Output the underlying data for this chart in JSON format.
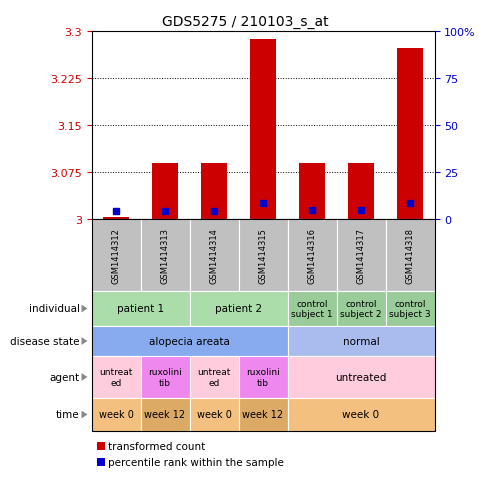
{
  "title": "GDS5275 / 210103_s_at",
  "samples": [
    "GSM1414312",
    "GSM1414313",
    "GSM1414314",
    "GSM1414315",
    "GSM1414316",
    "GSM1414317",
    "GSM1414318"
  ],
  "red_values": [
    3.003,
    3.09,
    3.09,
    3.287,
    3.09,
    3.09,
    3.273
  ],
  "blue_values": [
    3.012,
    3.012,
    3.012,
    3.025,
    3.015,
    3.015,
    3.025
  ],
  "ylim_left": [
    3.0,
    3.3
  ],
  "ylim_right": [
    0,
    100
  ],
  "yticks_left": [
    3.0,
    3.075,
    3.15,
    3.225,
    3.3
  ],
  "yticks_right": [
    0,
    25,
    50,
    75,
    100
  ],
  "ytick_labels_left": [
    "3",
    "3.075",
    "3.15",
    "3.225",
    "3.3"
  ],
  "ytick_labels_right": [
    "0",
    "25",
    "50",
    "75",
    "100%"
  ],
  "red_color": "#cc0000",
  "blue_color": "#0000cc",
  "table_header_bg": "#c0c0c0",
  "individual_row": {
    "label": "individual",
    "cells": [
      {
        "text": "patient 1",
        "span": 2,
        "bg": "#aaddaa"
      },
      {
        "text": "patient 2",
        "span": 2,
        "bg": "#aaddaa"
      },
      {
        "text": "control\nsubject 1",
        "span": 1,
        "bg": "#99cc99"
      },
      {
        "text": "control\nsubject 2",
        "span": 1,
        "bg": "#99cc99"
      },
      {
        "text": "control\nsubject 3",
        "span": 1,
        "bg": "#99cc99"
      }
    ]
  },
  "disease_row": {
    "label": "disease state",
    "cells": [
      {
        "text": "alopecia areata",
        "span": 4,
        "bg": "#88aaee"
      },
      {
        "text": "normal",
        "span": 3,
        "bg": "#aabbee"
      }
    ]
  },
  "agent_row": {
    "label": "agent",
    "cells": [
      {
        "text": "untreat\ned",
        "span": 1,
        "bg": "#ffccdd"
      },
      {
        "text": "ruxolini\ntib",
        "span": 1,
        "bg": "#ee88ee"
      },
      {
        "text": "untreat\ned",
        "span": 1,
        "bg": "#ffccdd"
      },
      {
        "text": "ruxolini\ntib",
        "span": 1,
        "bg": "#ee88ee"
      },
      {
        "text": "untreated",
        "span": 3,
        "bg": "#ffccdd"
      }
    ]
  },
  "time_row": {
    "label": "time",
    "cells": [
      {
        "text": "week 0",
        "span": 1,
        "bg": "#f4c080"
      },
      {
        "text": "week 12",
        "span": 1,
        "bg": "#ddaa66"
      },
      {
        "text": "week 0",
        "span": 1,
        "bg": "#f4c080"
      },
      {
        "text": "week 12",
        "span": 1,
        "bg": "#ddaa66"
      },
      {
        "text": "week 0",
        "span": 3,
        "bg": "#f4c080"
      }
    ]
  },
  "legend": [
    {
      "color": "#cc0000",
      "label": "transformed count"
    },
    {
      "color": "#0000cc",
      "label": "percentile rank within the sample"
    }
  ]
}
